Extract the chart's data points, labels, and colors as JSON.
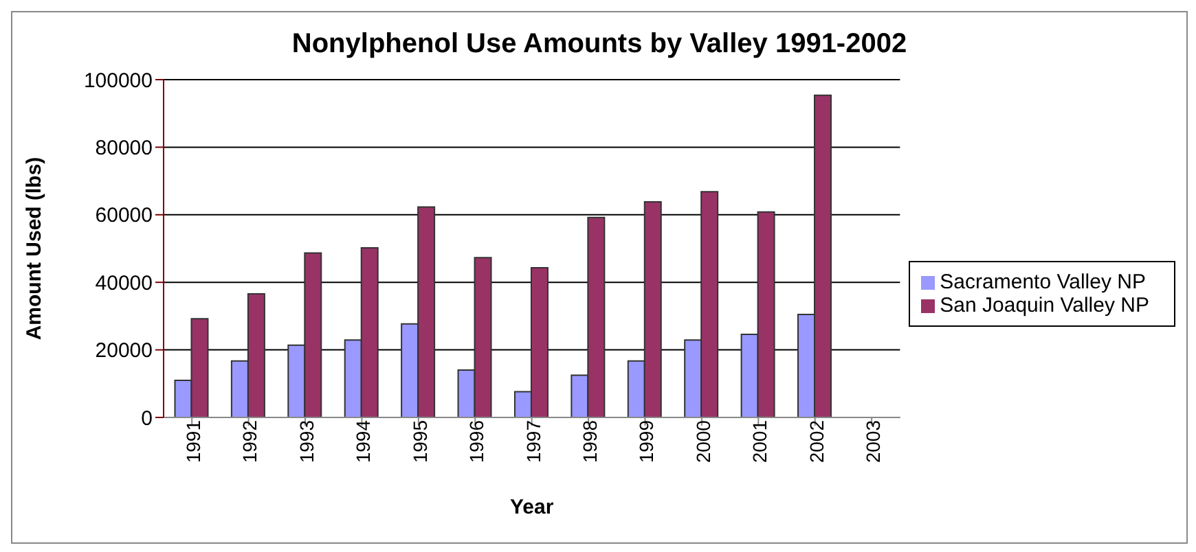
{
  "chart_data": {
    "type": "bar",
    "title": "Nonylphenol Use Amounts by Valley 1991-2002",
    "xlabel": "Year",
    "ylabel": "Amount Used (lbs)",
    "categories": [
      "1991",
      "1992",
      "1993",
      "1994",
      "1995",
      "1996",
      "1997",
      "1998",
      "1999",
      "2000",
      "2001",
      "2002",
      "2003"
    ],
    "series": [
      {
        "name": "Sacramento Valley NP",
        "color": "#9999ff",
        "values": [
          11000,
          16700,
          21400,
          22900,
          27700,
          14000,
          7600,
          12500,
          16700,
          22900,
          24600,
          30500,
          null
        ]
      },
      {
        "name": "San Joaquin Valley NP",
        "color": "#993366",
        "values": [
          29200,
          36600,
          48700,
          50200,
          62300,
          47300,
          44300,
          59200,
          63800,
          66800,
          60800,
          95400,
          null
        ]
      }
    ],
    "ylim": [
      0,
      100000
    ],
    "yticks": [
      0,
      20000,
      40000,
      60000,
      80000,
      100000
    ],
    "grid": "y",
    "legend": "right"
  }
}
